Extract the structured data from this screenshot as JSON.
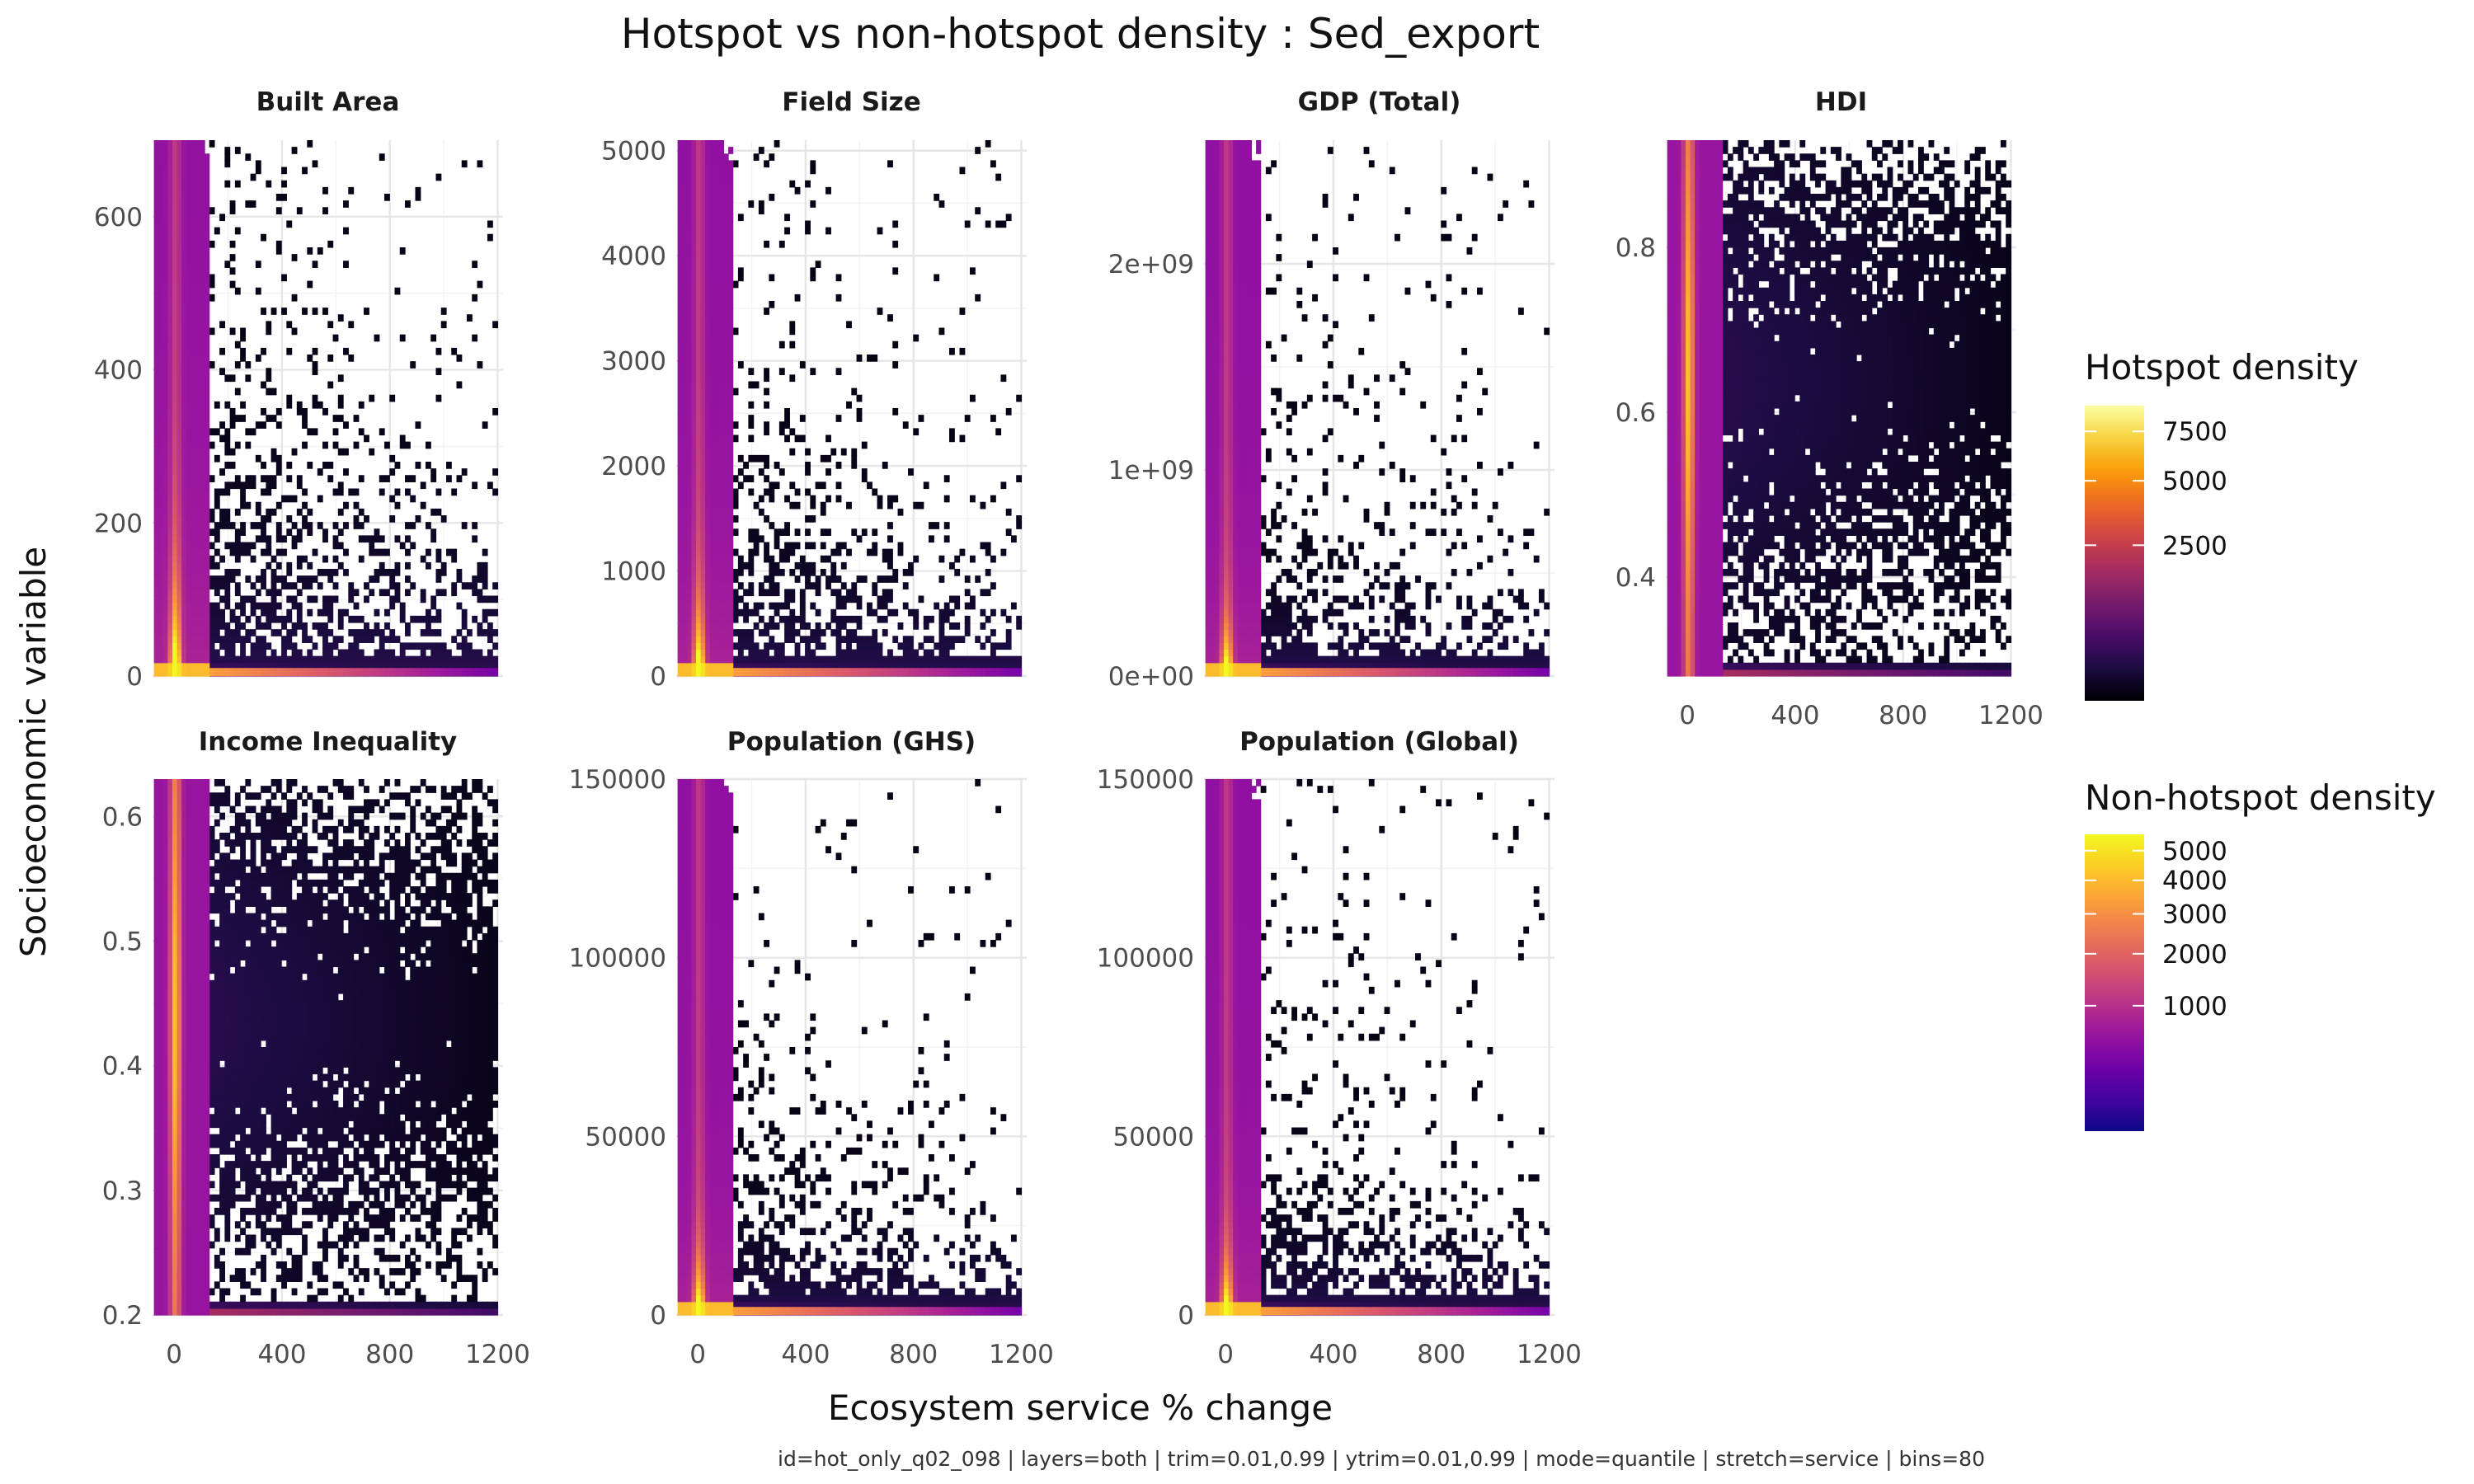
{
  "chart_data": {
    "type": "heatmap",
    "title": "Hotspot vs non-hotspot density : Sed_export",
    "xlabel": "Ecosystem service % change",
    "ylabel": "Socioeconomic variable",
    "caption": "id=hot_only_q02_098 | layers=both | trim=0.01,0.99 | ytrim=0.01,0.99 | mode=quantile | stretch=service | bins=80",
    "x_ticks": [
      "0",
      "400",
      "800",
      "1200"
    ],
    "xlim": [
      -80,
      1220
    ],
    "grid": true,
    "panels": [
      {
        "title": "Built Area",
        "ylim": [
          0,
          700
        ],
        "y_ticks": [
          {
            "v": 0,
            "label": "0"
          },
          {
            "v": 200,
            "label": "200"
          },
          {
            "v": 400,
            "label": "400"
          },
          {
            "v": 600,
            "label": "600"
          }
        ],
        "y_max": 700,
        "decay": 260
      },
      {
        "title": "Field Size",
        "ylim": [
          0,
          5100
        ],
        "y_ticks": [
          {
            "v": 0,
            "label": "0"
          },
          {
            "v": 1000,
            "label": "1000"
          },
          {
            "v": 2000,
            "label": "2000"
          },
          {
            "v": 3000,
            "label": "3000"
          },
          {
            "v": 4000,
            "label": "4000"
          },
          {
            "v": 5000,
            "label": "5000"
          }
        ],
        "y_max": 5100,
        "decay": 1400
      },
      {
        "title": "GDP (Total)",
        "ylim": [
          0,
          2600000000
        ],
        "y_ticks": [
          {
            "v": 0,
            "label": "0e+00"
          },
          {
            "v": 1000000000,
            "label": "1e+09"
          },
          {
            "v": 2000000000,
            "label": "2e+09"
          }
        ],
        "y_max": 2600000000,
        "decay": 550000000
      },
      {
        "title": "HDI",
        "ylim": [
          0.28,
          0.93
        ],
        "y_ticks": [
          {
            "v": 0.4,
            "label": "0.4"
          },
          {
            "v": 0.6,
            "label": "0.6"
          },
          {
            "v": 0.8,
            "label": "0.8"
          }
        ],
        "y_max": 0.93,
        "decay": 0
      },
      {
        "title": "Income Inequality",
        "ylim": [
          0.2,
          0.63
        ],
        "y_ticks": [
          {
            "v": 0.2,
            "label": "0.2"
          },
          {
            "v": 0.3,
            "label": "0.3"
          },
          {
            "v": 0.4,
            "label": "0.4"
          },
          {
            "v": 0.5,
            "label": "0.5"
          },
          {
            "v": 0.6,
            "label": "0.6"
          }
        ],
        "y_max": 0.63,
        "decay": 0
      },
      {
        "title": "Population (GHS)",
        "ylim": [
          0,
          150000
        ],
        "y_ticks": [
          {
            "v": 0,
            "label": "0"
          },
          {
            "v": 50000,
            "label": "50000"
          },
          {
            "v": 100000,
            "label": "100000"
          },
          {
            "v": 150000,
            "label": "150000"
          }
        ],
        "y_max": 150000,
        "decay": 32000
      },
      {
        "title": "Population (Global)",
        "ylim": [
          0,
          150000
        ],
        "y_ticks": [
          {
            "v": 0,
            "label": "0"
          },
          {
            "v": 50000,
            "label": "50000"
          },
          {
            "v": 100000,
            "label": "100000"
          },
          {
            "v": 150000,
            "label": "150000"
          }
        ],
        "y_max": 150000,
        "decay": 32000
      }
    ],
    "legends": [
      {
        "title": "Hotspot density",
        "palette": "inferno",
        "labels": [
          {
            "v": 7500,
            "label": "7500"
          },
          {
            "v": 5000,
            "label": "5000"
          },
          {
            "v": 2500,
            "label": "2500"
          }
        ],
        "max": 9000,
        "transform": "sqrt"
      },
      {
        "title": "Non-hotspot density",
        "palette": "plasma",
        "labels": [
          {
            "v": 5000,
            "label": "5000"
          },
          {
            "v": 4000,
            "label": "4000"
          },
          {
            "v": 3000,
            "label": "3000"
          },
          {
            "v": 2000,
            "label": "2000"
          },
          {
            "v": 1000,
            "label": "1000"
          }
        ],
        "max": 5600,
        "transform": "sqrt"
      }
    ],
    "colors": {
      "inferno": [
        "#000004",
        "#1b0c41",
        "#4a0c6b",
        "#781c6d",
        "#a52c60",
        "#cf4446",
        "#ed6925",
        "#fb9b06",
        "#f7d13d",
        "#fcffa4"
      ],
      "plasma": [
        "#0d0887",
        "#46039f",
        "#7201a8",
        "#9c179e",
        "#bd3786",
        "#d8576b",
        "#ed7953",
        "#fb9f3a",
        "#fdca26",
        "#f0f921"
      ]
    }
  }
}
